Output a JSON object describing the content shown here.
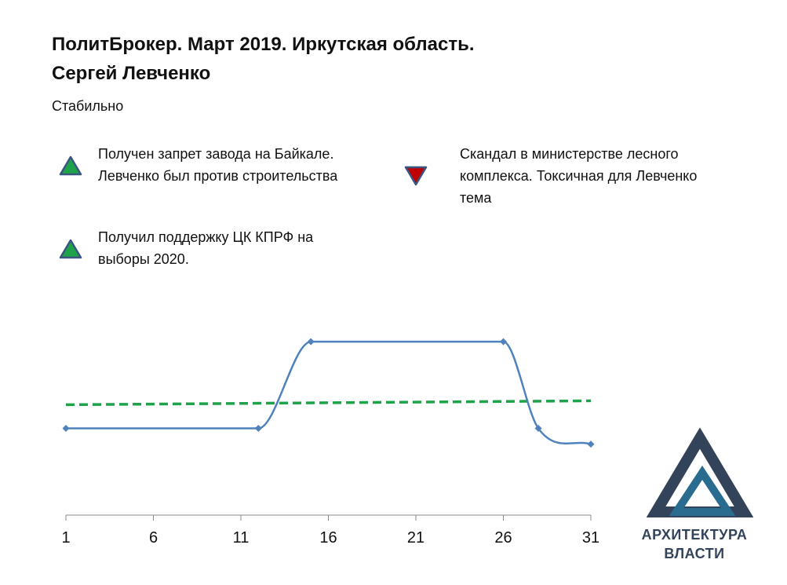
{
  "header": {
    "title_line1": "ПолитБрокер. Март 2019. Иркутская область.",
    "title_line2": "Сергей Левченко",
    "status": "Стабильно"
  },
  "events": [
    {
      "text_line1": "Получен запрет завода на Байкале.",
      "text_line2": "Левченко был против строительства",
      "text_line3": "",
      "direction": "up",
      "color": "#1fa34a"
    },
    {
      "text_line1": "Скандал в министерстве лесного",
      "text_line2": "комплекса. Токсичная для Левченко",
      "text_line3": "тема",
      "direction": "down",
      "color": "#c00000"
    },
    {
      "text_line1": "Получил поддержку ЦК КПРФ на",
      "text_line2": "выборы 2020.",
      "text_line3": "",
      "direction": "up",
      "color": "#1fa34a"
    }
  ],
  "chart_data": {
    "type": "line",
    "x_ticks": [
      "1",
      "6",
      "11",
      "16",
      "21",
      "26",
      "31"
    ],
    "xlim": [
      1,
      31
    ],
    "series": [
      {
        "x": [
          1,
          12,
          15,
          26,
          28,
          31
        ],
        "y": [
          -0.1,
          -0.1,
          1.0,
          1.0,
          -0.1,
          -0.3
        ],
        "color": "#4f81bd",
        "style": "smooth-line-with-diamond-markers"
      },
      {
        "x": [
          1,
          31
        ],
        "y": [
          0.2,
          0.25
        ],
        "color": "#1fa34a",
        "style": "dashed-trend"
      }
    ],
    "ylim": [
      -1.2,
      1.25
    ],
    "grid": false
  },
  "logo": {
    "line1": "АРХИТЕКТУРА",
    "line2": "ВЛАСТИ",
    "color": "#33435a"
  }
}
